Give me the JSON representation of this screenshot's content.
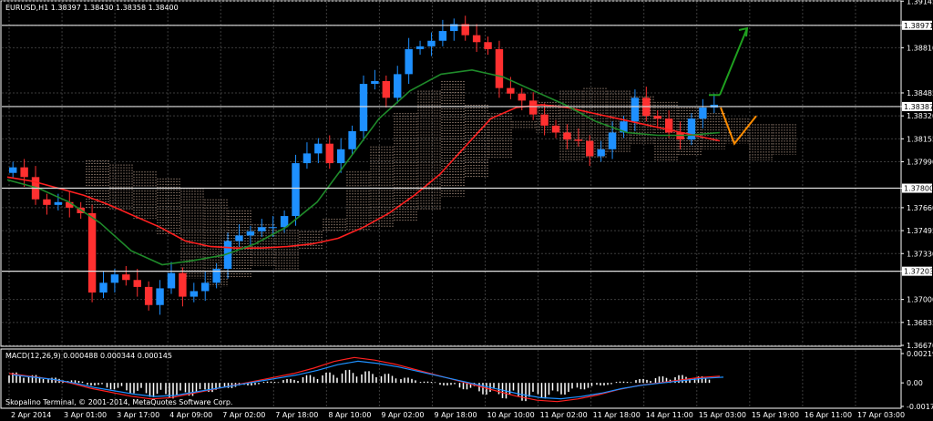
{
  "chart_data": [
    {
      "type": "candlestick",
      "title": "EURUSD,H1  1.38397 1.38430 1.38358 1.38400",
      "ylim": [
        1.3667,
        1.3914
      ],
      "price_ticks": [
        "1.39145",
        "1.38971",
        "1.38810",
        "1.38485",
        "1.38387",
        "1.38320",
        "1.38155",
        "1.37990",
        "1.37800",
        "1.37660",
        "1.37495",
        "1.37330",
        "1.37203",
        "1.37000",
        "1.36835",
        "1.36670"
      ],
      "highlighted_levels": [
        {
          "label": "1.38971",
          "value": 1.38971
        },
        {
          "label": "1.38387",
          "value": 1.38387
        },
        {
          "label": "1.37800",
          "value": 1.378
        },
        {
          "label": "1.37203",
          "value": 1.37203
        }
      ],
      "time_labels": [
        "2 Apr 2014",
        "3 Apr 01:00",
        "3 Apr 17:00",
        "4 Apr 09:00",
        "7 Apr 02:00",
        "7 Apr 18:00",
        "8 Apr 10:00",
        "9 Apr 02:00",
        "9 Apr 18:00",
        "10 Apr 10:00",
        "11 Apr 02:00",
        "11 Apr 18:00",
        "14 Apr 11:00",
        "15 Apr 03:00",
        "15 Apr 19:00",
        "16 Apr 11:00",
        "17 Apr 03:00"
      ],
      "close_series": [
        1.3795,
        1.3788,
        1.3772,
        1.3768,
        1.377,
        1.3766,
        1.3762,
        1.3705,
        1.3712,
        1.3718,
        1.3714,
        1.3709,
        1.3696,
        1.3708,
        1.3719,
        1.3702,
        1.3706,
        1.3712,
        1.3722,
        1.3742,
        1.3746,
        1.3749,
        1.3752,
        1.3752,
        1.376,
        1.3798,
        1.3805,
        1.3812,
        1.3798,
        1.3808,
        1.3821,
        1.3855,
        1.3857,
        1.3845,
        1.3862,
        1.388,
        1.3882,
        1.3886,
        1.3893,
        1.3898,
        1.389,
        1.3885,
        1.388,
        1.3852,
        1.3848,
        1.3843,
        1.3833,
        1.3825,
        1.382,
        1.3815,
        1.3814,
        1.3803,
        1.3808,
        1.382,
        1.3828,
        1.3845,
        1.3832,
        1.383,
        1.382,
        1.3815,
        1.383,
        1.3838,
        1.384
      ],
      "lines": [
        {
          "name": "red",
          "color": "#ff2020",
          "values": [
            1.3788,
            1.3785,
            1.378,
            1.3775,
            1.3768,
            1.376,
            1.3752,
            1.3742,
            1.3738,
            1.3737,
            1.3737,
            1.3738,
            1.374,
            1.3744,
            1.3752,
            1.3762,
            1.3775,
            1.379,
            1.381,
            1.383,
            1.3838,
            1.384,
            1.3838,
            1.3834,
            1.383,
            1.3826,
            1.3822,
            1.3818,
            1.3814
          ]
        },
        {
          "name": "green",
          "color": "#1f8a2a",
          "values": [
            1.3786,
            1.378,
            1.377,
            1.3755,
            1.3735,
            1.3725,
            1.3728,
            1.3732,
            1.374,
            1.3752,
            1.377,
            1.38,
            1.383,
            1.385,
            1.3862,
            1.3865,
            1.386,
            1.385,
            1.384,
            1.3828,
            1.382,
            1.3818,
            1.3818,
            1.382
          ]
        }
      ],
      "arrows": [
        {
          "color": "#1fa01f",
          "from": [
            1.3847,
            "15 Apr 19:00"
          ],
          "to": [
            1.3895,
            "17 Apr 03:00"
          ]
        }
      ],
      "projection": {
        "color": "#ff8c00",
        "values": [
          1.3838,
          1.3812,
          1.3832
        ]
      }
    },
    {
      "type": "macd",
      "title": "MACD(12,26,9) 0.000488 0.000344 0.000145",
      "ylim": [
        -0.00176,
        0.00219
      ],
      "ticks": [
        "0.00219",
        "0.00",
        "-0.00176"
      ],
      "histogram": [
        0.0008,
        0.0006,
        0.0004,
        0.0002,
        -0.0002,
        -0.0005,
        -0.0008,
        -0.0011,
        -0.0012,
        -0.001,
        -0.0007,
        -0.0004,
        -0.0002,
        0.0001,
        0.0003,
        0.0006,
        0.0008,
        0.001,
        0.0009,
        0.0007,
        0.0004,
        0.0001,
        -0.0002,
        -0.0005,
        -0.0009,
        -0.0012,
        -0.0014,
        -0.0012,
        -0.0009,
        -0.0005,
        -0.0002,
        0.0001,
        0.0003,
        0.0005,
        0.0006,
        0.0005
      ],
      "signal": [
        0.0007,
        0.0005,
        0.0003,
        0.0,
        -0.0004,
        -0.0007,
        -0.001,
        -0.0012,
        -0.0011,
        -0.0008,
        -0.0005,
        -0.0002,
        0.0001,
        0.0004,
        0.0007,
        0.0011,
        0.0016,
        0.0019,
        0.0017,
        0.0014,
        0.001,
        0.0006,
        0.0002,
        -0.0002,
        -0.0006,
        -0.001,
        -0.0013,
        -0.0014,
        -0.0012,
        -0.0009,
        -0.0005,
        -0.0002,
        0.0,
        0.0002,
        0.0004,
        0.0005
      ]
    }
  ],
  "footer": {
    "copyright": "Skopalino Terminal, © 2001-2014, MetaQuotes Software Corp."
  },
  "colors": {
    "background": "#000000",
    "grid": "#3c3c3c",
    "bull": "#1e90ff",
    "bear": "#ff3030",
    "cloud": "#d7b7a3"
  }
}
